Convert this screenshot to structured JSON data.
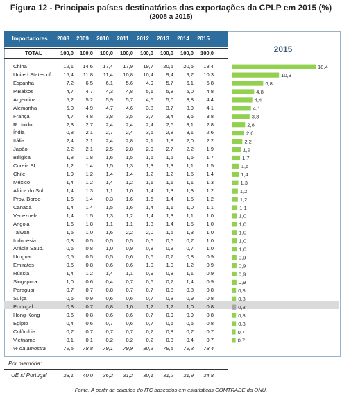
{
  "title": "Figura 12 - Principais países destinatários das exportações da CPLP em 2015 (%)",
  "subtitle": "(2008 a 2015)",
  "table": {
    "corner": "Importadores",
    "years": [
      "2008",
      "2009",
      "2010",
      "2011",
      "2012",
      "2013",
      "2014",
      "2015"
    ],
    "total_label": "TOTAL",
    "total_values": [
      "100,0",
      "100,0",
      "100,0",
      "100,0",
      "100,0",
      "100,0",
      "100,0",
      "100,0"
    ],
    "rows": [
      {
        "name": "China",
        "v": [
          "12,1",
          "14,6",
          "17,4",
          "17,9",
          "19,7",
          "20,5",
          "20,5",
          "18,4"
        ]
      },
      {
        "name": "United States of.",
        "v": [
          "15,4",
          "11,8",
          "11,4",
          "10,8",
          "10,4",
          "9,4",
          "9,7",
          "10,3"
        ]
      },
      {
        "name": "Espanha",
        "v": [
          "7,2",
          "6,5",
          "6,1",
          "5,6",
          "4,9",
          "5,7",
          "6,1",
          "6,8"
        ]
      },
      {
        "name": "P.Baixos",
        "v": [
          "4,7",
          "4,7",
          "4,3",
          "4,8",
          "5,1",
          "5,8",
          "5,0",
          "4,8"
        ]
      },
      {
        "name": "Argentina",
        "v": [
          "5,2",
          "5,2",
          "5,9",
          "5,7",
          "4,6",
          "5,0",
          "3,8",
          "4,4"
        ]
      },
      {
        "name": "Alemanha",
        "v": [
          "5,0",
          "4,9",
          "4,7",
          "4,6",
          "3,8",
          "3,7",
          "3,9",
          "4,1"
        ]
      },
      {
        "name": "França",
        "v": [
          "4,7",
          "4,8",
          "3,8",
          "3,5",
          "3,7",
          "3,4",
          "3,6",
          "3,8"
        ]
      },
      {
        "name": "R.Unido",
        "v": [
          "2,3",
          "2,7",
          "2,4",
          "2,4",
          "2,4",
          "2,6",
          "3,1",
          "2,8"
        ]
      },
      {
        "name": "Índia",
        "v": [
          "0,8",
          "2,1",
          "2,7",
          "2,4",
          "3,6",
          "2,8",
          "3,1",
          "2,6"
        ]
      },
      {
        "name": "Itália",
        "v": [
          "2,4",
          "2,1",
          "2,4",
          "2,8",
          "2,1",
          "1,8",
          "2,0",
          "2,2"
        ]
      },
      {
        "name": "Japão",
        "v": [
          "2,2",
          "2,1",
          "2,5",
          "2,8",
          "2,9",
          "2,7",
          "2,2",
          "1,9"
        ]
      },
      {
        "name": "Bélgica",
        "v": [
          "1,8",
          "1,8",
          "1,6",
          "1,5",
          "1,6",
          "1,5",
          "1,6",
          "1,7"
        ]
      },
      {
        "name": "Coreia SL",
        "v": [
          "1,2",
          "1,4",
          "1,5",
          "1,3",
          "1,3",
          "1,3",
          "1,1",
          "1,5"
        ]
      },
      {
        "name": "Chile",
        "v": [
          "1,9",
          "1,2",
          "1,4",
          "1,4",
          "1,2",
          "1,2",
          "1,5",
          "1,4"
        ]
      },
      {
        "name": "México",
        "v": [
          "1,4",
          "1,2",
          "1,4",
          "1,2",
          "1,1",
          "1,1",
          "1,1",
          "1,3"
        ]
      },
      {
        "name": "África do Sul",
        "v": [
          "1,4",
          "1,3",
          "1,1",
          "1,0",
          "1,4",
          "1,3",
          "1,3",
          "1,2"
        ]
      },
      {
        "name": "Prov. Bordo",
        "v": [
          "1,6",
          "1,4",
          "0,3",
          "1,6",
          "1,6",
          "1,4",
          "1,5",
          "1,2"
        ]
      },
      {
        "name": "Canadá",
        "v": [
          "1,4",
          "1,4",
          "1,5",
          "1,6",
          "1,4",
          "1,1",
          "1,0",
          "1,1"
        ]
      },
      {
        "name": "Venezuela",
        "v": [
          "1,4",
          "1,5",
          "1,3",
          "1,2",
          "1,4",
          "1,3",
          "1,1",
          "1,0"
        ]
      },
      {
        "name": "Angola",
        "v": [
          "1,6",
          "1,8",
          "1,1",
          "1,1",
          "1,3",
          "1,4",
          "1,5",
          "1,0"
        ]
      },
      {
        "name": "Taiwan",
        "v": [
          "1,5",
          "1,0",
          "1,6",
          "2,2",
          "2,0",
          "1,6",
          "1,3",
          "1,0"
        ]
      },
      {
        "name": "Indonésia",
        "v": [
          "0,3",
          "0,5",
          "0,5",
          "0,5",
          "0,6",
          "0,6",
          "0,7",
          "1,0"
        ]
      },
      {
        "name": "Arábia Saud.",
        "v": [
          "0,6",
          "0,8",
          "1,0",
          "0,9",
          "0,8",
          "0,8",
          "0,7",
          "1,0"
        ]
      },
      {
        "name": "Uruguai",
        "v": [
          "0,5",
          "0,5",
          "0,5",
          "0,6",
          "0,6",
          "0,7",
          "0,8",
          "0,9"
        ]
      },
      {
        "name": "Emiratos",
        "v": [
          "0,6",
          "0,8",
          "0,6",
          "0,6",
          "1,0",
          "1,0",
          "1,2",
          "0,9"
        ]
      },
      {
        "name": "Rússia",
        "v": [
          "1,4",
          "1,2",
          "1,4",
          "1,1",
          "0,9",
          "0,8",
          "1,1",
          "0,9"
        ]
      },
      {
        "name": "Singapura",
        "v": [
          "1,0",
          "0,6",
          "0,4",
          "0,7",
          "0,6",
          "0,7",
          "1,4",
          "0,9"
        ]
      },
      {
        "name": "Paraguai",
        "v": [
          "0,7",
          "0,7",
          "0,8",
          "0,7",
          "0,7",
          "0,8",
          "0,8",
          "0,8"
        ]
      },
      {
        "name": "Suíça",
        "v": [
          "0,6",
          "0,9",
          "0,6",
          "0,6",
          "0,7",
          "0,8",
          "0,9",
          "0,8"
        ]
      },
      {
        "name": "Portugal",
        "v": [
          "0,8",
          "0,7",
          "0,8",
          "1,0",
          "1,2",
          "1,2",
          "1,0",
          "0,8"
        ]
      },
      {
        "name": "Hong-Kong",
        "v": [
          "0,6",
          "0,8",
          "0,6",
          "0,6",
          "0,7",
          "0,9",
          "0,9",
          "0,8"
        ]
      },
      {
        "name": "Egipto",
        "v": [
          "0,4",
          "0,6",
          "0,7",
          "0,6",
          "0,7",
          "0,6",
          "0,6",
          "0,8"
        ]
      },
      {
        "name": "Colômbia",
        "v": [
          "0,7",
          "0,7",
          "0,7",
          "0,7",
          "0,7",
          "0,8",
          "0,7",
          "0,7"
        ]
      },
      {
        "name": "Vietname",
        "v": [
          "0,1",
          "0,1",
          "0,2",
          "0,2",
          "0,2",
          "0,3",
          "0,4",
          "0,7"
        ]
      }
    ],
    "amostra_label": "% da amostra",
    "amostra_values": [
      "79,5",
      "78,8",
      "79,1",
      "79,9",
      "80,3",
      "79,5",
      "79,3",
      "78,4"
    ]
  },
  "memo": {
    "label": "Por memória:",
    "row_label": "UE s/ Portugal",
    "values": [
      "38,1",
      "40,0",
      "36,2",
      "31,2",
      "30,1",
      "31,2",
      "31,9",
      "34,8"
    ]
  },
  "source": "Fonte: A partir de cálculos do ITC baseados em estatísticas COMTRADE da ONU.",
  "colors": {
    "header_bg": "#2e6e9e",
    "bar": "#92d050",
    "highlight_bar": "#a6a6a6",
    "highlight_row": "#dadada"
  },
  "chart_data": {
    "type": "bar",
    "title": "2015",
    "orientation": "horizontal",
    "highlight": "Portugal",
    "categories": [
      "China",
      "United States of.",
      "Espanha",
      "P.Baixos",
      "Argentina",
      "Alemanha",
      "França",
      "R.Unido",
      "Índia",
      "Itália",
      "Japão",
      "Bélgica",
      "Coreia SL",
      "Chile",
      "México",
      "África do Sul",
      "Prov. Bordo",
      "Canadá",
      "Venezuela",
      "Angola",
      "Taiwan",
      "Indonésia",
      "Arábia Saud.",
      "Uruguai",
      "Emiratos",
      "Rússia",
      "Singapura",
      "Paraguai",
      "Suíça",
      "Portugal",
      "Hong-Kong",
      "Egipto",
      "Colômbia",
      "Vietname"
    ],
    "values": [
      18.4,
      10.3,
      6.8,
      4.8,
      4.4,
      4.1,
      3.8,
      2.8,
      2.6,
      2.2,
      1.9,
      1.7,
      1.5,
      1.4,
      1.3,
      1.2,
      1.2,
      1.1,
      1.0,
      1.0,
      1.0,
      1.0,
      1.0,
      0.9,
      0.9,
      0.9,
      0.9,
      0.8,
      0.8,
      0.8,
      0.8,
      0.8,
      0.7,
      0.7
    ],
    "labels": [
      "18,4",
      "10,3",
      "6,8",
      "4,8",
      "4,4",
      "4,1",
      "3,8",
      "2,8",
      "2,6",
      "2,2",
      "1,9",
      "1,7",
      "1,5",
      "1,4",
      "1,3",
      "1,2",
      "1,2",
      "1,1",
      "1,0",
      "1,0",
      "1,0",
      "1,0",
      "1,0",
      "0,9",
      "0,9",
      "0,9",
      "0,9",
      "0,8",
      "0,8",
      "0,8",
      "0,8",
      "0,8",
      "0,7",
      "0,7"
    ],
    "xlim": [
      0,
      18.4
    ]
  }
}
